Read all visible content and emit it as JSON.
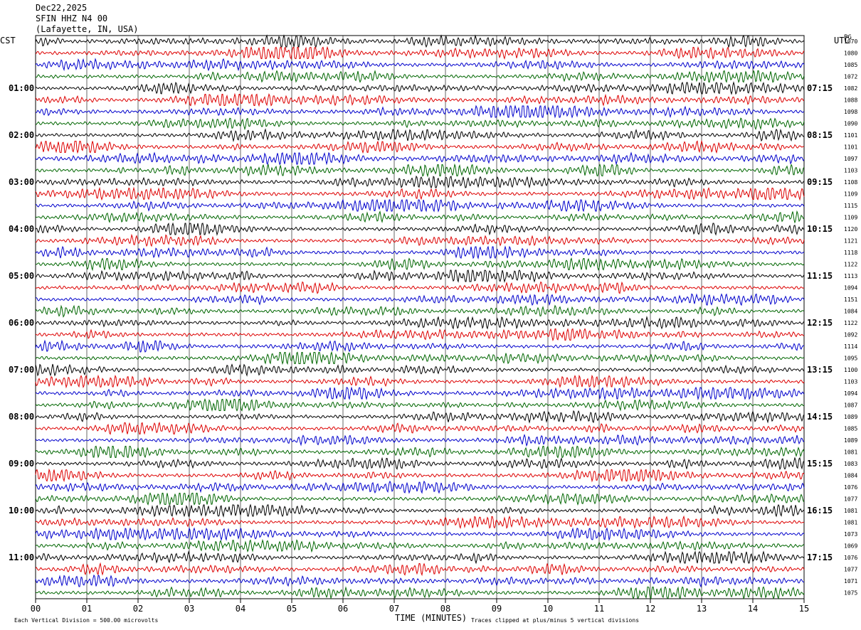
{
  "header": {
    "date": "Dec22,2025",
    "station": "SFIN HHZ N4 00",
    "location": "(Lafayette, IN, USA)"
  },
  "left_timezone": "CST",
  "right_timezone": "UTC",
  "right_column_label": "PG",
  "footer": {
    "scale_note": "Each Vertical Division =  500.00 microvolts",
    "clip_note": "Traces clipped at plus/minus 5 vertical divisions"
  },
  "colors": {
    "trace_cycle": [
      "#000000",
      "#dd0000",
      "#0000cc",
      "#006600"
    ],
    "grid": "#000000",
    "background": "#ffffff"
  },
  "chart_data": {
    "type": "line",
    "subtype": "helicorder",
    "xlabel": "TIME (MINUTES)",
    "xlim": [
      0,
      15
    ],
    "x_tick_labels": [
      "00",
      "01",
      "02",
      "03",
      "04",
      "05",
      "06",
      "07",
      "08",
      "09",
      "10",
      "11",
      "12",
      "13",
      "14",
      "15"
    ],
    "row_interval_minutes": 15,
    "row_count": 48,
    "left_hour_labels": [
      "01:00",
      "02:00",
      "03:00",
      "04:00",
      "05:00",
      "06:00",
      "07:00",
      "08:00",
      "09:00",
      "10:00",
      "11:00"
    ],
    "right_hour_labels": [
      "07:15",
      "08:15",
      "09:15",
      "10:15",
      "11:15",
      "12:15",
      "13:15",
      "14:15",
      "15:15",
      "16:15",
      "17:15"
    ],
    "hour_label_row_step": 4,
    "hour_label_first_row": 4,
    "row_values": [
      "1070",
      "1080",
      "1085",
      "1072",
      "1082",
      "1088",
      "1098",
      "1090",
      "1101",
      "1101",
      "1097",
      "1103",
      "1108",
      "1109",
      "1115",
      "1109",
      "1120",
      "1121",
      "1118",
      "1122",
      "1113",
      "1094",
      "1151",
      "1084",
      "1122",
      "1092",
      "1114",
      "1095",
      "1100",
      "1103",
      "1094",
      "1087",
      "1089",
      "1085",
      "1089",
      "1081",
      "1083",
      "1084",
      "1076",
      "1077",
      "1081",
      "1081",
      "1073",
      "1069",
      "1076",
      "1077",
      "1071",
      "1075"
    ]
  }
}
